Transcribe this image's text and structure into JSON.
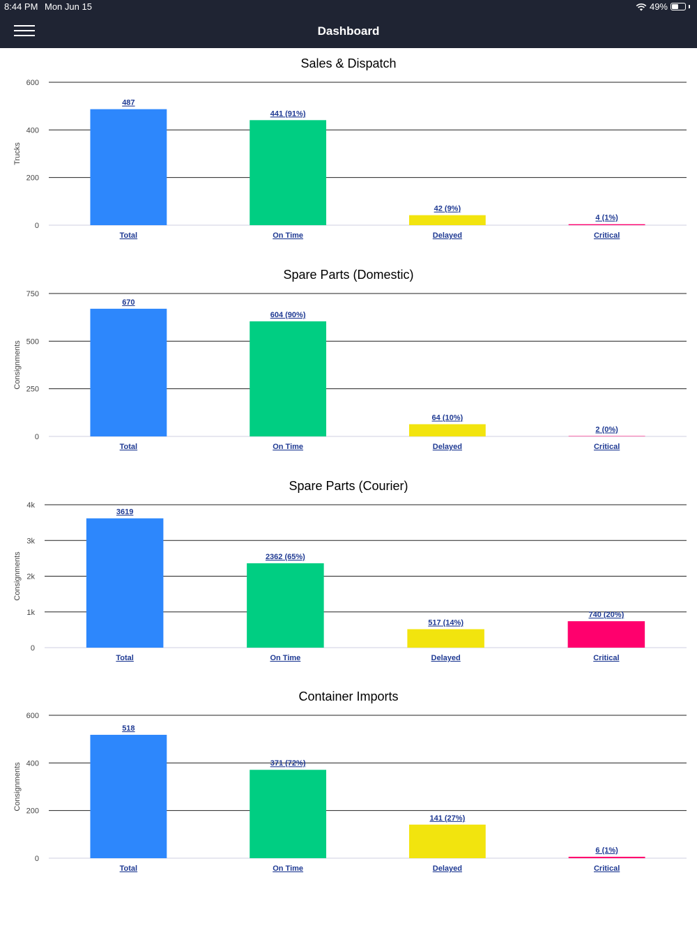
{
  "status_bar": {
    "time": "8:44 PM",
    "date": "Mon Jun 15",
    "battery": "49%",
    "wifi_icon": "wifi-icon",
    "battery_icon": "battery-icon"
  },
  "nav": {
    "title": "Dashboard",
    "menu_icon": "hamburger-menu-icon"
  },
  "colors": {
    "total": "#2d87fc",
    "on_time": "#00ce82",
    "delayed": "#f2e40e",
    "critical": "#ff006d"
  },
  "chart_data": [
    {
      "type": "bar",
      "title": "Sales & Dispatch",
      "ylabel": "Trucks",
      "xlabel": "",
      "ylim": [
        0,
        600
      ],
      "yticks": [
        "0",
        "200",
        "400",
        "600"
      ],
      "categories": [
        "Total",
        "On Time",
        "Delayed",
        "Critical"
      ],
      "values": [
        487,
        441,
        42,
        4
      ],
      "labels": [
        "487",
        "441 (91%)",
        "42 (9%)",
        "4 (1%)"
      ]
    },
    {
      "type": "bar",
      "title": "Spare Parts (Domestic)",
      "ylabel": "Consignments",
      "xlabel": "",
      "ylim": [
        0,
        750
      ],
      "yticks": [
        "0",
        "250",
        "500",
        "750"
      ],
      "categories": [
        "Total",
        "On Time",
        "Delayed",
        "Critical"
      ],
      "values": [
        670,
        604,
        64,
        2
      ],
      "labels": [
        "670",
        "604 (90%)",
        "64 (10%)",
        "2 (0%)"
      ]
    },
    {
      "type": "bar",
      "title": "Spare Parts (Courier)",
      "ylabel": "Consignments",
      "xlabel": "",
      "ylim": [
        0,
        4000
      ],
      "yticks": [
        "0",
        "1k",
        "2k",
        "3k",
        "4k"
      ],
      "categories": [
        "Total",
        "On Time",
        "Delayed",
        "Critical"
      ],
      "values": [
        3619,
        2362,
        517,
        740
      ],
      "labels": [
        "3619",
        "2362 (65%)",
        "517 (14%)",
        "740 (20%)"
      ]
    },
    {
      "type": "bar",
      "title": "Container Imports",
      "ylabel": "Consignments",
      "xlabel": "",
      "ylim": [
        0,
        600
      ],
      "yticks": [
        "0",
        "200",
        "400",
        "600"
      ],
      "categories": [
        "Total",
        "On Time",
        "Delayed",
        "Critical"
      ],
      "values": [
        518,
        371,
        141,
        6
      ],
      "labels": [
        "518",
        "371 (72%)",
        "141 (27%)",
        "6 (1%)"
      ]
    }
  ]
}
